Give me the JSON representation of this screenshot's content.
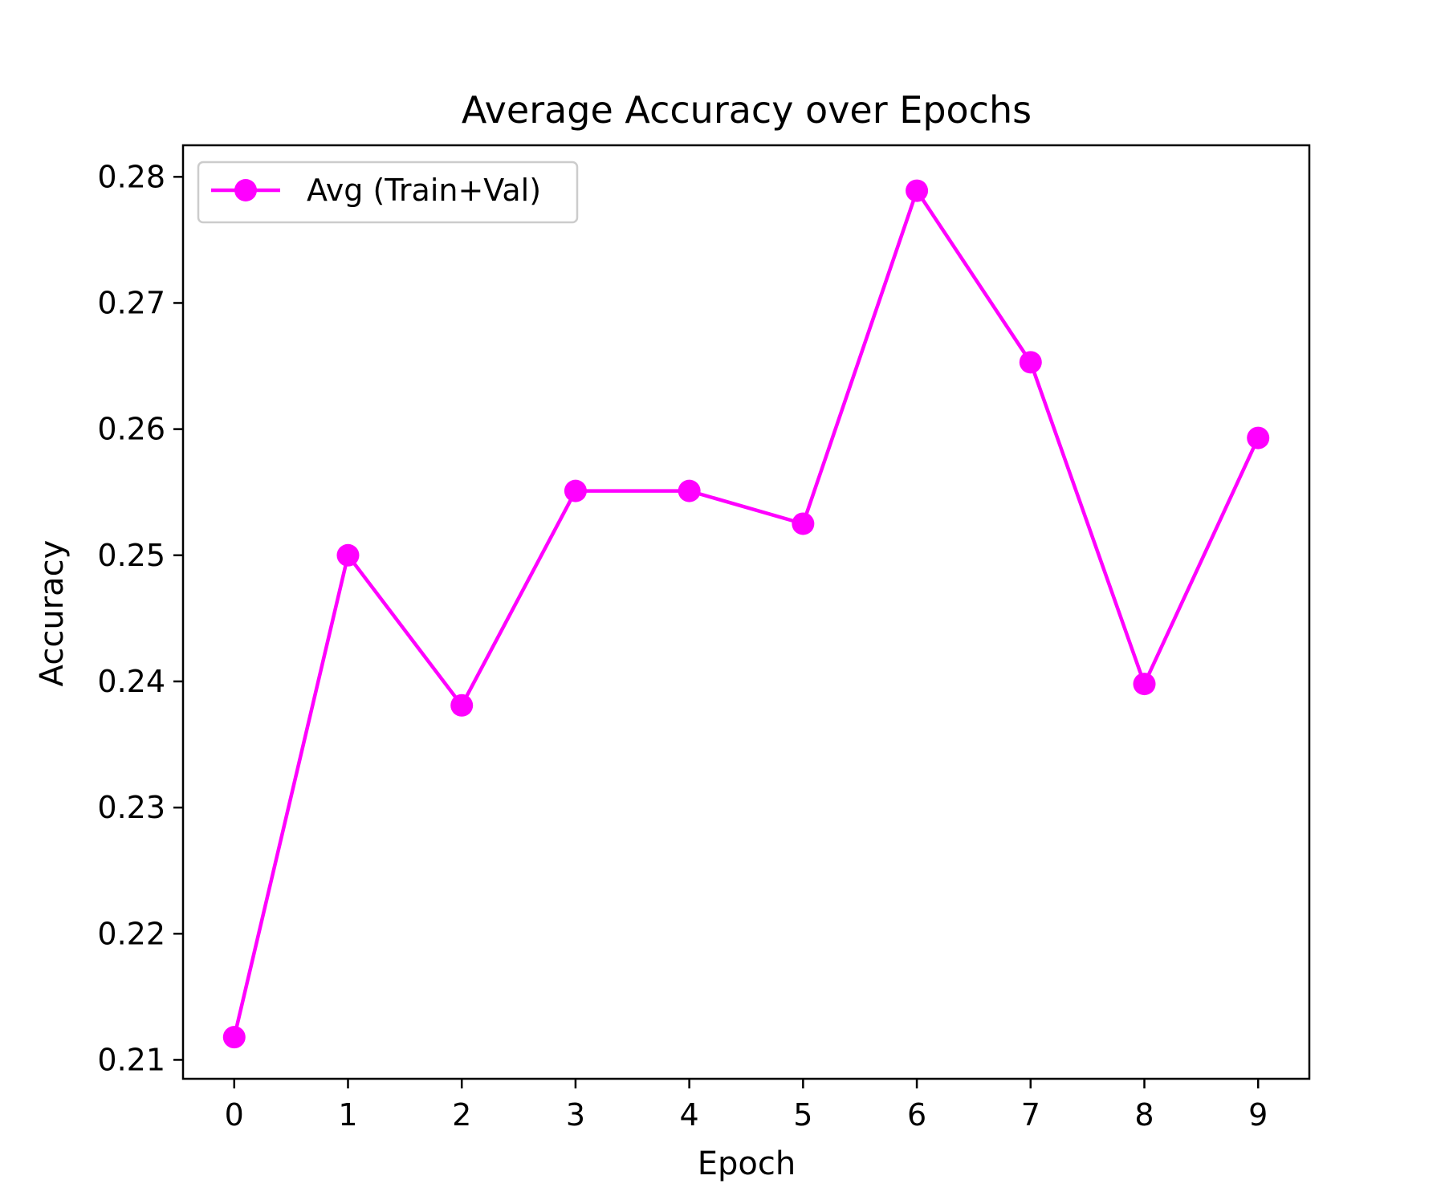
{
  "chart_data": {
    "type": "line",
    "title": "Average Accuracy over Epochs",
    "xlabel": "Epoch",
    "ylabel": "Accuracy",
    "x": [
      0,
      1,
      2,
      3,
      4,
      5,
      6,
      7,
      8,
      9
    ],
    "x_ticks": [
      "0",
      "1",
      "2",
      "3",
      "4",
      "5",
      "6",
      "7",
      "8",
      "9"
    ],
    "y_ticks": [
      "0.21",
      "0.22",
      "0.23",
      "0.24",
      "0.25",
      "0.26",
      "0.27",
      "0.28"
    ],
    "xlim": [
      -0.45,
      9.45
    ],
    "ylim": [
      0.2085,
      0.2825
    ],
    "grid": false,
    "legend_position": "upper-left",
    "series": [
      {
        "name": "Avg (Train+Val)",
        "color": "#ff00ff",
        "marker": "circle",
        "values": [
          0.2118,
          0.25,
          0.2381,
          0.2551,
          0.2551,
          0.2525,
          0.2789,
          0.2653,
          0.2398,
          0.2593
        ]
      }
    ]
  }
}
